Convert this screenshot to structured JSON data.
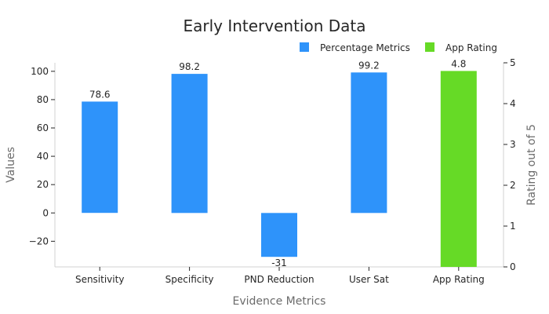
{
  "chart_data": {
    "type": "bar",
    "title": "Early Intervention Data",
    "xlabel": "Evidence Metrics",
    "ylabel": "Values",
    "y2label": "Rating out of 5",
    "categories": [
      "Sensitivity",
      "Specificity",
      "PND Reduction",
      "User Sat",
      "App Rating"
    ],
    "series": [
      {
        "name": "Percentage Metrics",
        "axis": "left",
        "color": "#2e93fa",
        "values": [
          78.6,
          98.2,
          -31,
          99.2,
          null
        ],
        "labels": [
          "78.6",
          "98.2",
          "-31",
          "99.2",
          null
        ]
      },
      {
        "name": "App Rating",
        "axis": "right",
        "color": "#66da26",
        "values": [
          null,
          null,
          null,
          null,
          4.8
        ],
        "labels": [
          null,
          null,
          null,
          null,
          "4.8"
        ]
      }
    ],
    "ylim": [
      -38.1,
      106
    ],
    "y2lim": [
      0,
      5
    ],
    "yticks": [
      -20,
      0,
      20,
      40,
      60,
      80,
      100
    ],
    "yticklabels": [
      "−20",
      "0",
      "20",
      "40",
      "60",
      "80",
      "100"
    ],
    "y2ticks": [
      0,
      1,
      2,
      3,
      4,
      5
    ],
    "y2ticklabels": [
      "0",
      "1",
      "2",
      "3",
      "4",
      "5"
    ],
    "legend": "top-right",
    "grid": false
  }
}
